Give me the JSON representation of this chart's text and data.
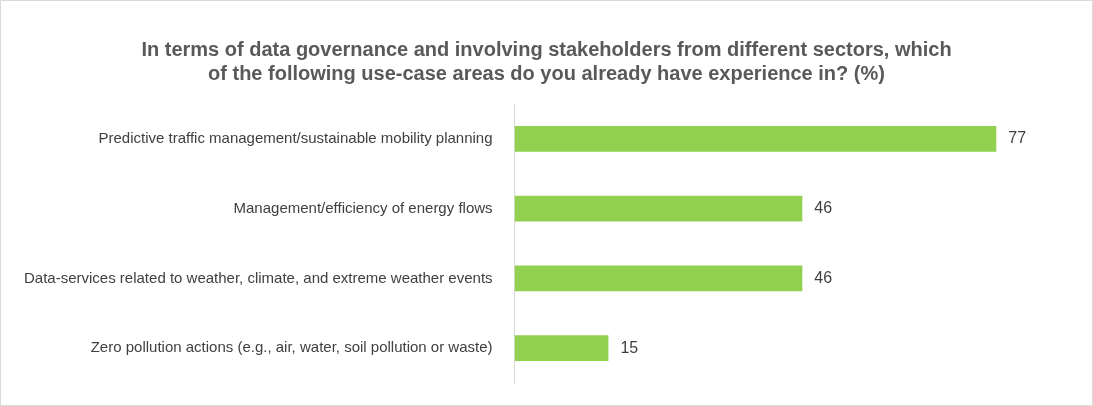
{
  "chart_data": {
    "type": "bar",
    "orientation": "horizontal",
    "title": "In terms of data governance and involving stakeholders from different sectors, which of the following use-case areas do you already have experience in? (%)",
    "categories": [
      "Predictive traffic management/sustainable mobility planning",
      "Management/efficiency of energy flows",
      "Data-services related to weather, climate, and extreme weather events",
      "Zero pollution actions (e.g., air, water, soil pollution or waste)"
    ],
    "values": [
      77,
      46,
      46,
      15
    ],
    "color": "#92d050",
    "data_labels": true,
    "legend": false
  }
}
